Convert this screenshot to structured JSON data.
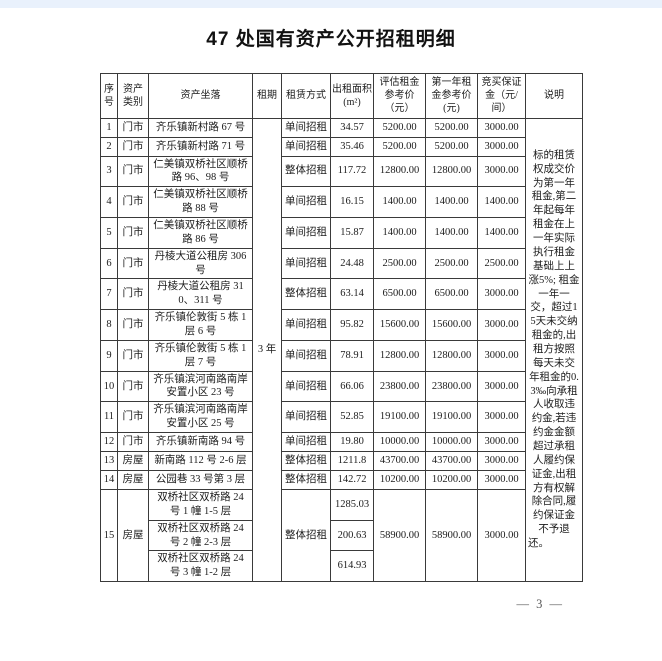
{
  "colors": {
    "top_bar": "#e9f1fc",
    "text": "#1c1c1c",
    "border": "#3a3a3a"
  },
  "page": {
    "title": "47 处国有资产公开招租明细",
    "page_number": "— 3 —"
  },
  "table": {
    "headers": {
      "seq": "序号",
      "category": "资产类别",
      "location": "资产坐落",
      "term": "租期",
      "method": "租赁方式",
      "area": "出租面积(m²)",
      "assessed": "评估租金参考价（元）",
      "first_year": "第一年租金参考价(元)",
      "deposit": "竞买保证金（元/间）",
      "notes": "说明"
    },
    "term_value": "3 年",
    "notes_value": "标的租赁权成交价为第一年租金,第二年起每年租金在上一年实际执行租金基础上上涨5%; 租金一年一交，超过15天未交纳租金的,出租方按照每天未交年租金的0.3‰向承租人收取违约金,若违约金金额超过承租人履约保证金,出租方有权解除合同,履约保证金不予退还。",
    "rows": [
      {
        "seq": "1",
        "category": "门市",
        "location": "齐乐镇新村路 67 号",
        "method": "单间招租",
        "area": "34.57",
        "assessed": "5200.00",
        "first_year": "5200.00",
        "deposit": "3000.00"
      },
      {
        "seq": "2",
        "category": "门市",
        "location": "齐乐镇新村路 71 号",
        "method": "单间招租",
        "area": "35.46",
        "assessed": "5200.00",
        "first_year": "5200.00",
        "deposit": "3000.00"
      },
      {
        "seq": "3",
        "category": "门市",
        "location": "仁美镇双桥社区顺桥路 96、98 号",
        "method": "整体招租",
        "area": "117.72",
        "assessed": "12800.00",
        "first_year": "12800.00",
        "deposit": "3000.00"
      },
      {
        "seq": "4",
        "category": "门市",
        "location": "仁美镇双桥社区顺桥路 88 号",
        "method": "单间招租",
        "area": "16.15",
        "assessed": "1400.00",
        "first_year": "1400.00",
        "deposit": "1400.00"
      },
      {
        "seq": "5",
        "category": "门市",
        "location": "仁美镇双桥社区顺桥路 86 号",
        "method": "单间招租",
        "area": "15.87",
        "assessed": "1400.00",
        "first_year": "1400.00",
        "deposit": "1400.00"
      },
      {
        "seq": "6",
        "category": "门市",
        "location": "丹棱大道公租房 306 号",
        "method": "单间招租",
        "area": "24.48",
        "assessed": "2500.00",
        "first_year": "2500.00",
        "deposit": "2500.00"
      },
      {
        "seq": "7",
        "category": "门市",
        "location": "丹棱大道公租房 310、311 号",
        "method": "整体招租",
        "area": "63.14",
        "assessed": "6500.00",
        "first_year": "6500.00",
        "deposit": "3000.00"
      },
      {
        "seq": "8",
        "category": "门市",
        "location": "齐乐镇伦敦街 5 栋 1 层 6 号",
        "method": "单间招租",
        "area": "95.82",
        "assessed": "15600.00",
        "first_year": "15600.00",
        "deposit": "3000.00"
      },
      {
        "seq": "9",
        "category": "门市",
        "location": "齐乐镇伦敦街 5 栋 1 层 7 号",
        "method": "单间招租",
        "area": "78.91",
        "assessed": "12800.00",
        "first_year": "12800.00",
        "deposit": "3000.00"
      },
      {
        "seq": "10",
        "category": "门市",
        "location": "齐乐镇滨河南路南岸安置小区 23 号",
        "method": "单间招租",
        "area": "66.06",
        "assessed": "23800.00",
        "first_year": "23800.00",
        "deposit": "3000.00"
      },
      {
        "seq": "11",
        "category": "门市",
        "location": "齐乐镇滨河南路南岸安置小区 25 号",
        "method": "单间招租",
        "area": "52.85",
        "assessed": "19100.00",
        "first_year": "19100.00",
        "deposit": "3000.00"
      },
      {
        "seq": "12",
        "category": "门市",
        "location": "齐乐镇新南路 94 号",
        "method": "单间招租",
        "area": "19.80",
        "assessed": "10000.00",
        "first_year": "10000.00",
        "deposit": "3000.00"
      },
      {
        "seq": "13",
        "category": "房屋",
        "location": "新南路 112 号 2-6 层",
        "method": "整体招租",
        "area": "1211.8",
        "assessed": "43700.00",
        "first_year": "43700.00",
        "deposit": "3000.00"
      },
      {
        "seq": "14",
        "category": "房屋",
        "location": "公园巷 33 号第 3 层",
        "method": "整体招租",
        "area": "142.72",
        "assessed": "10200.00",
        "first_year": "10200.00",
        "deposit": "3000.00"
      },
      {
        "seq": "15",
        "category": "房屋",
        "method": "整体招租",
        "assessed": "58900.00",
        "first_year": "58900.00",
        "deposit": "3000.00",
        "sub_rows": [
          {
            "location": "双桥社区双桥路 24 号 1 幢 1-5 层",
            "area": "1285.03"
          },
          {
            "location": "双桥社区双桥路 24 号 2 幢 2-3 层",
            "area": "200.63"
          },
          {
            "location": "双桥社区双桥路 24 号 3 幢 1-2 层",
            "area": "614.93"
          }
        ]
      }
    ]
  }
}
